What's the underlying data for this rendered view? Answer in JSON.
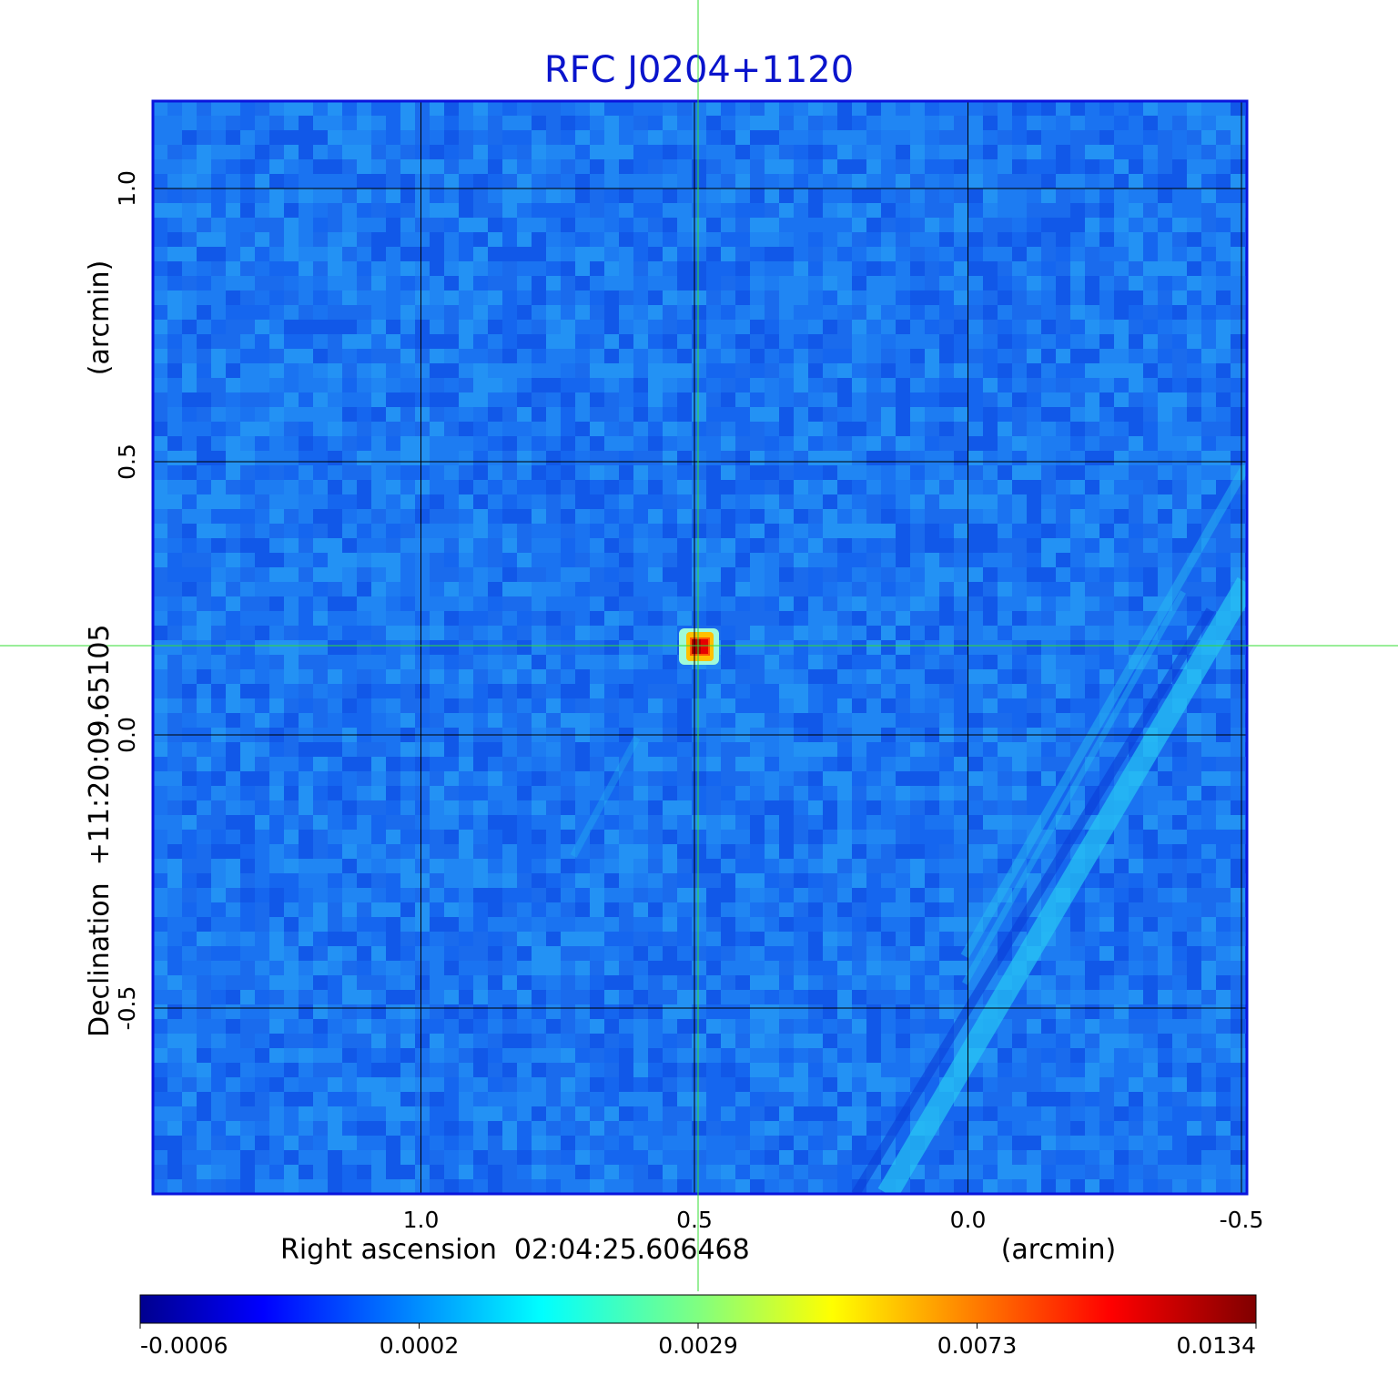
{
  "chart_data": {
    "type": "heatmap",
    "title": "RFC J0204+1120",
    "xlabel": "Right ascension  02:04:25.606468",
    "xunit": "(arcmin)",
    "ylabel": "Declination  +11:20:09.65105",
    "yunit": "(arcmin)",
    "x_range": [
      1.49,
      -0.51
    ],
    "y_range": [
      -0.84,
      1.16
    ],
    "x_ticks": [
      1.0,
      0.5,
      0.0,
      -0.5
    ],
    "x_tick_labels": [
      "1.0",
      "0.5",
      "0.0",
      "-0.5"
    ],
    "y_ticks": [
      1.0,
      0.5,
      0.0,
      -0.5
    ],
    "y_tick_labels": [
      "1.0",
      "0.5",
      "0.0",
      "-0.5"
    ],
    "grid": true,
    "crosshair": {
      "x": 0.5,
      "y": 0.16
    },
    "peak_source": {
      "x": 0.5,
      "y": 0.16,
      "value": 0.0134
    },
    "colormap": "jet",
    "colorbar_ticks": [
      "-0.0006",
      "0.0002",
      "0.0029",
      "0.0073",
      "0.0134"
    ],
    "colors": {
      "title": "#0a14cc",
      "frame": "#0a14dd",
      "grid": "#000000",
      "crosshair": "#33dd33"
    }
  }
}
